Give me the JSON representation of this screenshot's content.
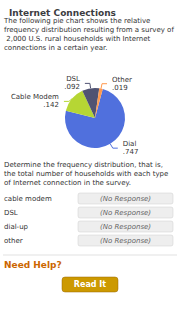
{
  "chart_data": {
    "type": "pie",
    "title": "Internet Connections",
    "subtitle": "The following pie chart shows the relative frequency distribution resulting from a survey of 2,000 U.S. rural households with Internet connections in a certain year.",
    "categories": [
      "Dial",
      "Cable Modem",
      "DSL",
      "Other"
    ],
    "values": [
      0.747,
      0.142,
      0.092,
      0.019
    ],
    "value_labels": [
      ".747",
      ".142",
      ".092",
      ".019"
    ],
    "data_labels": true,
    "legend": false,
    "annotations": [
      "Determine the frequency distribution, that is, the total number of households with each type of Internet connection in the survey.",
      "cable modem",
      "(No Response)",
      "DSL",
      "(No Response)",
      "dial-up",
      "(No Response)",
      "other",
      "(No Response)",
      "Need Help?",
      "Read It"
    ]
  }
}
